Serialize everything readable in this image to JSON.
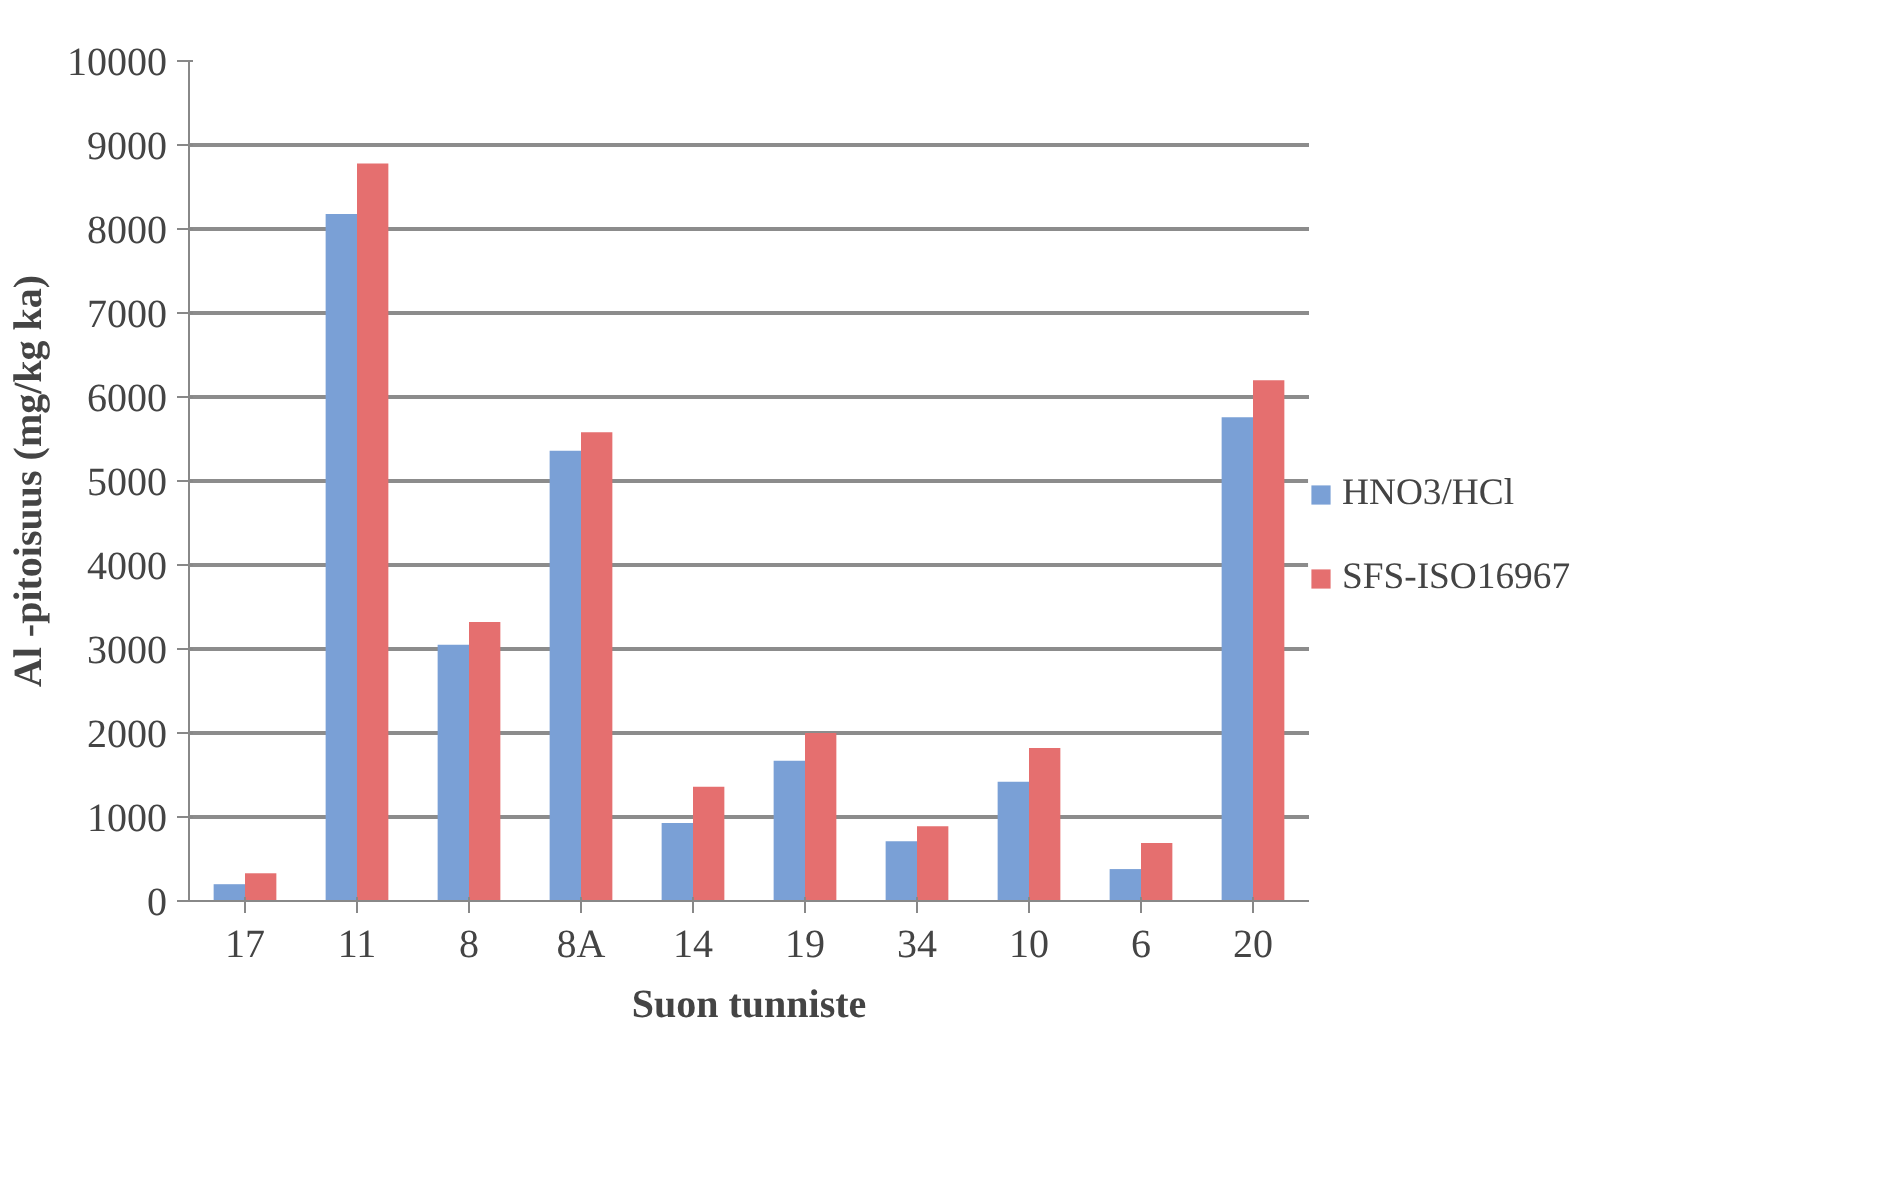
{
  "chart_data": {
    "type": "bar",
    "xlabel": "Suon tunniste",
    "ylabel": "Al -pitoisuus (mg/kg ka)",
    "categories": [
      "17",
      "11",
      "8",
      "8A",
      "14",
      "19",
      "34",
      "10",
      "6",
      "20"
    ],
    "series": [
      {
        "name": "HNO3/HCl",
        "color": "#7aa0d6",
        "values": [
          200,
          8180,
          3050,
          5360,
          930,
          1670,
          710,
          1420,
          380,
          5760
        ]
      },
      {
        "name": "SFS-ISO16967",
        "color": "#e56f6f",
        "values": [
          330,
          8780,
          3320,
          5580,
          1360,
          2000,
          890,
          1820,
          690,
          6200
        ]
      }
    ],
    "ylim": [
      0,
      10000
    ],
    "yticks": [
      0,
      1000,
      2000,
      3000,
      4000,
      5000,
      6000,
      7000,
      8000,
      9000,
      10000
    ],
    "grid": "y",
    "legend": "right"
  }
}
